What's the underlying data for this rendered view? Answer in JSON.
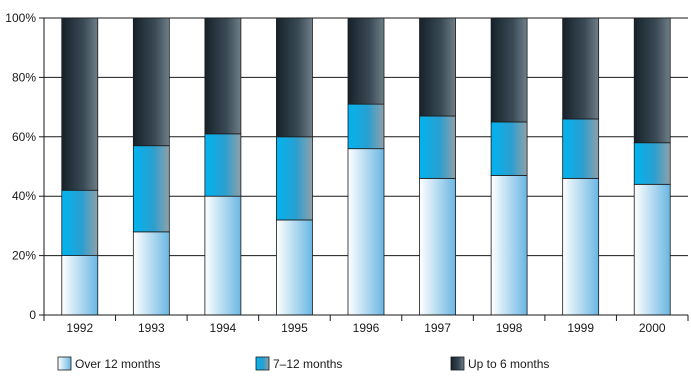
{
  "chart_data": {
    "type": "bar",
    "stacked": true,
    "percent": true,
    "categories": [
      "1992",
      "1993",
      "1994",
      "1995",
      "1996",
      "1997",
      "1998",
      "1999",
      "2000"
    ],
    "series": [
      {
        "name": "Over 12 months",
        "values": [
          20,
          28,
          40,
          32,
          56,
          46,
          47,
          46,
          44
        ],
        "color": "#8ecae6"
      },
      {
        "name": "7–12 months",
        "values": [
          22,
          29,
          21,
          28,
          15,
          21,
          18,
          20,
          14
        ],
        "color": "#00a3e0"
      },
      {
        "name": "Up to 6 months",
        "values": [
          58,
          43,
          39,
          40,
          29,
          33,
          35,
          34,
          42
        ],
        "color": "#263843"
      }
    ],
    "ylim": [
      0,
      100
    ],
    "yticks": [
      "0",
      "20%",
      "40%",
      "60%",
      "80%",
      "100%"
    ],
    "grid": true,
    "legend_position": "bottom"
  }
}
